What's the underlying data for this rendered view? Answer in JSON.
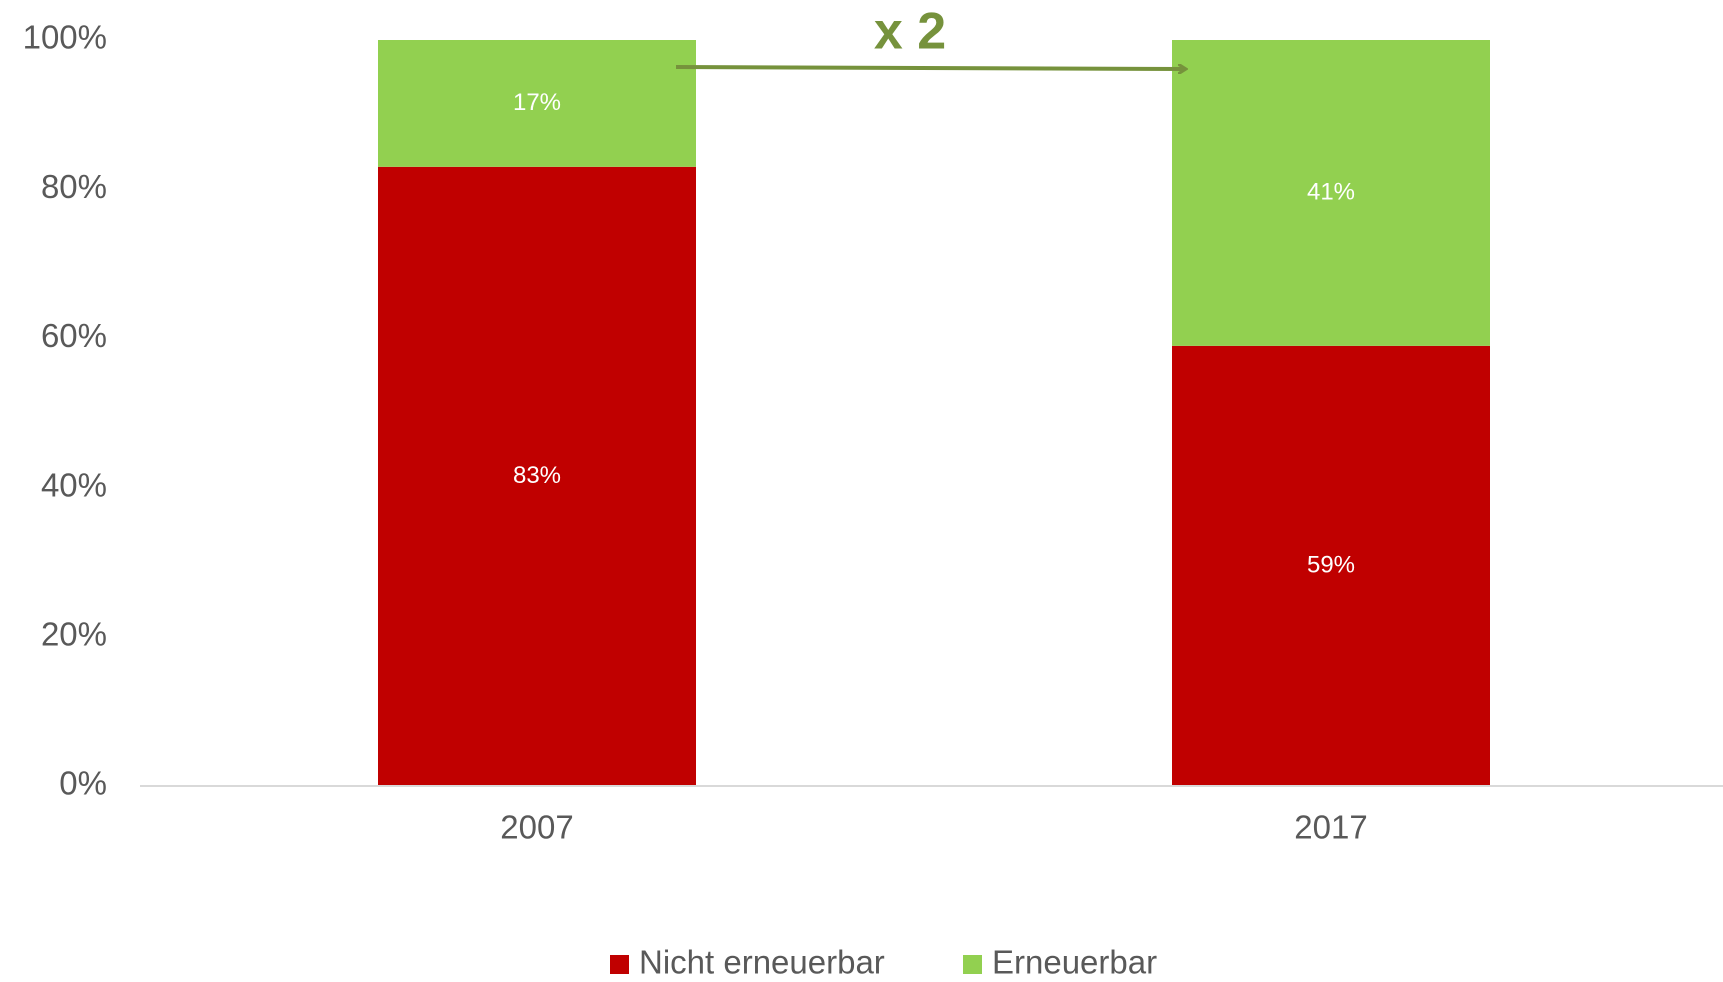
{
  "chart_data": {
    "type": "stacked_bar",
    "categories": [
      "2007",
      "2017"
    ],
    "series": [
      {
        "name": "Nicht erneuerbar",
        "color": "#c00000",
        "values": [
          83,
          59
        ],
        "value_labels": [
          "83%",
          "59%"
        ]
      },
      {
        "name": "Erneuerbar",
        "color": "#92d050",
        "values": [
          17,
          41
        ],
        "value_labels": [
          "17%",
          "41%"
        ]
      }
    ],
    "ylim": [
      0,
      100
    ],
    "yticks": [
      {
        "value": 0,
        "label": "0%"
      },
      {
        "value": 20,
        "label": "20%"
      },
      {
        "value": 40,
        "label": "40%"
      },
      {
        "value": 60,
        "label": "60%"
      },
      {
        "value": 80,
        "label": "80%"
      },
      {
        "value": 100,
        "label": "100%"
      }
    ],
    "grid": false,
    "legend": "bottom",
    "annotation": "x 2"
  }
}
